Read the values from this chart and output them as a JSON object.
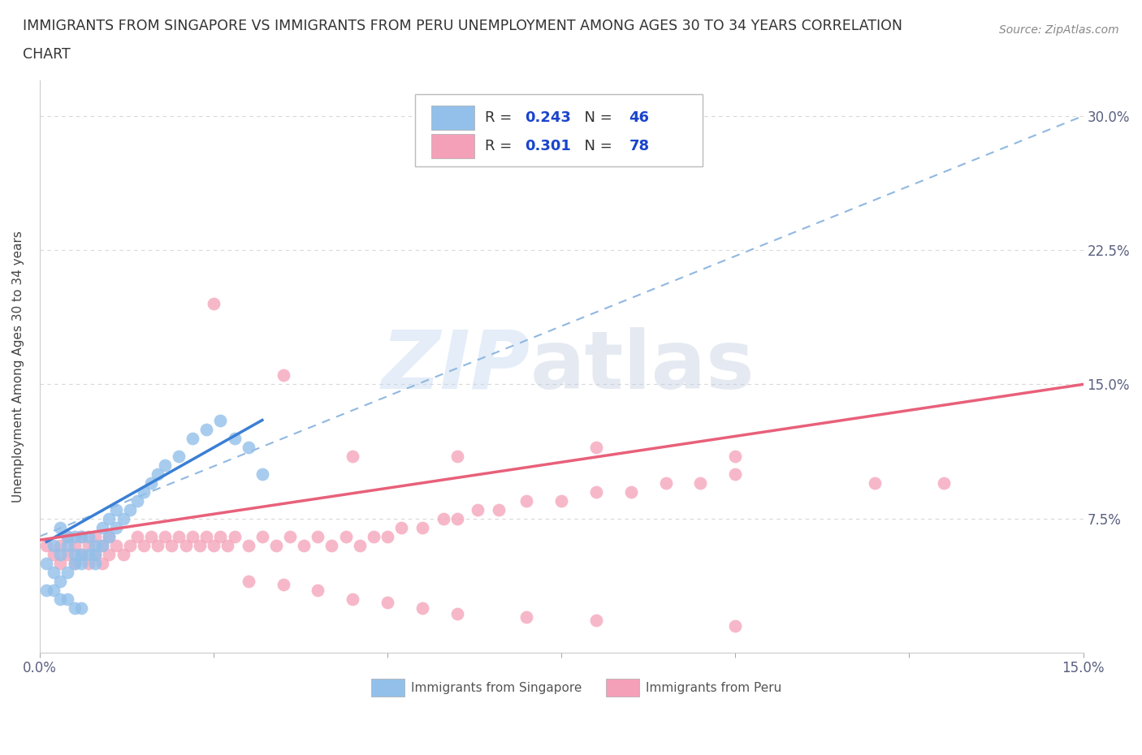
{
  "title_line1": "IMMIGRANTS FROM SINGAPORE VS IMMIGRANTS FROM PERU UNEMPLOYMENT AMONG AGES 30 TO 34 YEARS CORRELATION",
  "title_line2": "CHART",
  "source_text": "Source: ZipAtlas.com",
  "watermark_zip": "ZIP",
  "watermark_atlas": "atlas",
  "ylabel": "Unemployment Among Ages 30 to 34 years",
  "xlim": [
    0.0,
    0.15
  ],
  "ylim": [
    0.0,
    0.32
  ],
  "xticks": [
    0.0,
    0.025,
    0.05,
    0.075,
    0.1,
    0.125,
    0.15
  ],
  "xticklabels": [
    "0.0%",
    "",
    "",
    "",
    "",
    "",
    "15.0%"
  ],
  "ytick_positions": [
    0.0,
    0.075,
    0.15,
    0.225,
    0.3
  ],
  "ytick_labels": [
    "",
    "7.5%",
    "15.0%",
    "22.5%",
    "30.0%"
  ],
  "singapore_R": 0.243,
  "singapore_N": 46,
  "peru_R": 0.301,
  "peru_N": 78,
  "singapore_color": "#92c0ea",
  "peru_color": "#f4a0b8",
  "singapore_line_color": "#3a7fd5",
  "peru_line_color": "#e8607a",
  "dashed_line_color": "#90b8e0",
  "legend_R_color": "#1a44cc",
  "legend_N_color": "#1a44cc",
  "background_color": "#ffffff",
  "grid_color": "#d8d8d8",
  "grid_style": "dashed",
  "sg_x": [
    0.001,
    0.002,
    0.002,
    0.003,
    0.003,
    0.003,
    0.004,
    0.004,
    0.004,
    0.005,
    0.005,
    0.005,
    0.006,
    0.006,
    0.006,
    0.007,
    0.007,
    0.008,
    0.008,
    0.008,
    0.009,
    0.009,
    0.01,
    0.01,
    0.011,
    0.011,
    0.012,
    0.013,
    0.014,
    0.015,
    0.016,
    0.017,
    0.018,
    0.02,
    0.022,
    0.024,
    0.026,
    0.028,
    0.03,
    0.032,
    0.001,
    0.002,
    0.003,
    0.004,
    0.005,
    0.006
  ],
  "sg_y": [
    0.05,
    0.045,
    0.06,
    0.04,
    0.055,
    0.07,
    0.045,
    0.06,
    0.065,
    0.05,
    0.055,
    0.065,
    0.05,
    0.055,
    0.065,
    0.055,
    0.065,
    0.05,
    0.055,
    0.06,
    0.06,
    0.07,
    0.065,
    0.075,
    0.07,
    0.08,
    0.075,
    0.08,
    0.085,
    0.09,
    0.095,
    0.1,
    0.105,
    0.11,
    0.12,
    0.125,
    0.13,
    0.12,
    0.115,
    0.1,
    0.035,
    0.035,
    0.03,
    0.03,
    0.025,
    0.025
  ],
  "pe_x": [
    0.001,
    0.002,
    0.003,
    0.003,
    0.004,
    0.004,
    0.005,
    0.005,
    0.006,
    0.006,
    0.007,
    0.007,
    0.008,
    0.008,
    0.009,
    0.009,
    0.01,
    0.01,
    0.011,
    0.012,
    0.013,
    0.014,
    0.015,
    0.016,
    0.017,
    0.018,
    0.019,
    0.02,
    0.021,
    0.022,
    0.023,
    0.024,
    0.025,
    0.026,
    0.027,
    0.028,
    0.03,
    0.032,
    0.034,
    0.036,
    0.038,
    0.04,
    0.042,
    0.044,
    0.046,
    0.048,
    0.05,
    0.052,
    0.055,
    0.058,
    0.06,
    0.063,
    0.066,
    0.07,
    0.075,
    0.08,
    0.085,
    0.09,
    0.095,
    0.1,
    0.03,
    0.035,
    0.04,
    0.045,
    0.05,
    0.055,
    0.06,
    0.07,
    0.08,
    0.1,
    0.025,
    0.035,
    0.045,
    0.06,
    0.08,
    0.1,
    0.12,
    0.13
  ],
  "pe_y": [
    0.06,
    0.055,
    0.05,
    0.06,
    0.055,
    0.065,
    0.05,
    0.06,
    0.055,
    0.065,
    0.05,
    0.06,
    0.055,
    0.065,
    0.05,
    0.06,
    0.055,
    0.065,
    0.06,
    0.055,
    0.06,
    0.065,
    0.06,
    0.065,
    0.06,
    0.065,
    0.06,
    0.065,
    0.06,
    0.065,
    0.06,
    0.065,
    0.06,
    0.065,
    0.06,
    0.065,
    0.06,
    0.065,
    0.06,
    0.065,
    0.06,
    0.065,
    0.06,
    0.065,
    0.06,
    0.065,
    0.065,
    0.07,
    0.07,
    0.075,
    0.075,
    0.08,
    0.08,
    0.085,
    0.085,
    0.09,
    0.09,
    0.095,
    0.095,
    0.1,
    0.04,
    0.038,
    0.035,
    0.03,
    0.028,
    0.025,
    0.022,
    0.02,
    0.018,
    0.015,
    0.195,
    0.155,
    0.11,
    0.11,
    0.115,
    0.11,
    0.095,
    0.095
  ],
  "sg_line_x": [
    0.001,
    0.032
  ],
  "sg_line_y": [
    0.062,
    0.13
  ],
  "pe_line_x": [
    0.0,
    0.15
  ],
  "pe_line_y": [
    0.063,
    0.15
  ],
  "dash_line_x": [
    0.0,
    0.15
  ],
  "dash_line_y": [
    0.065,
    0.3
  ]
}
